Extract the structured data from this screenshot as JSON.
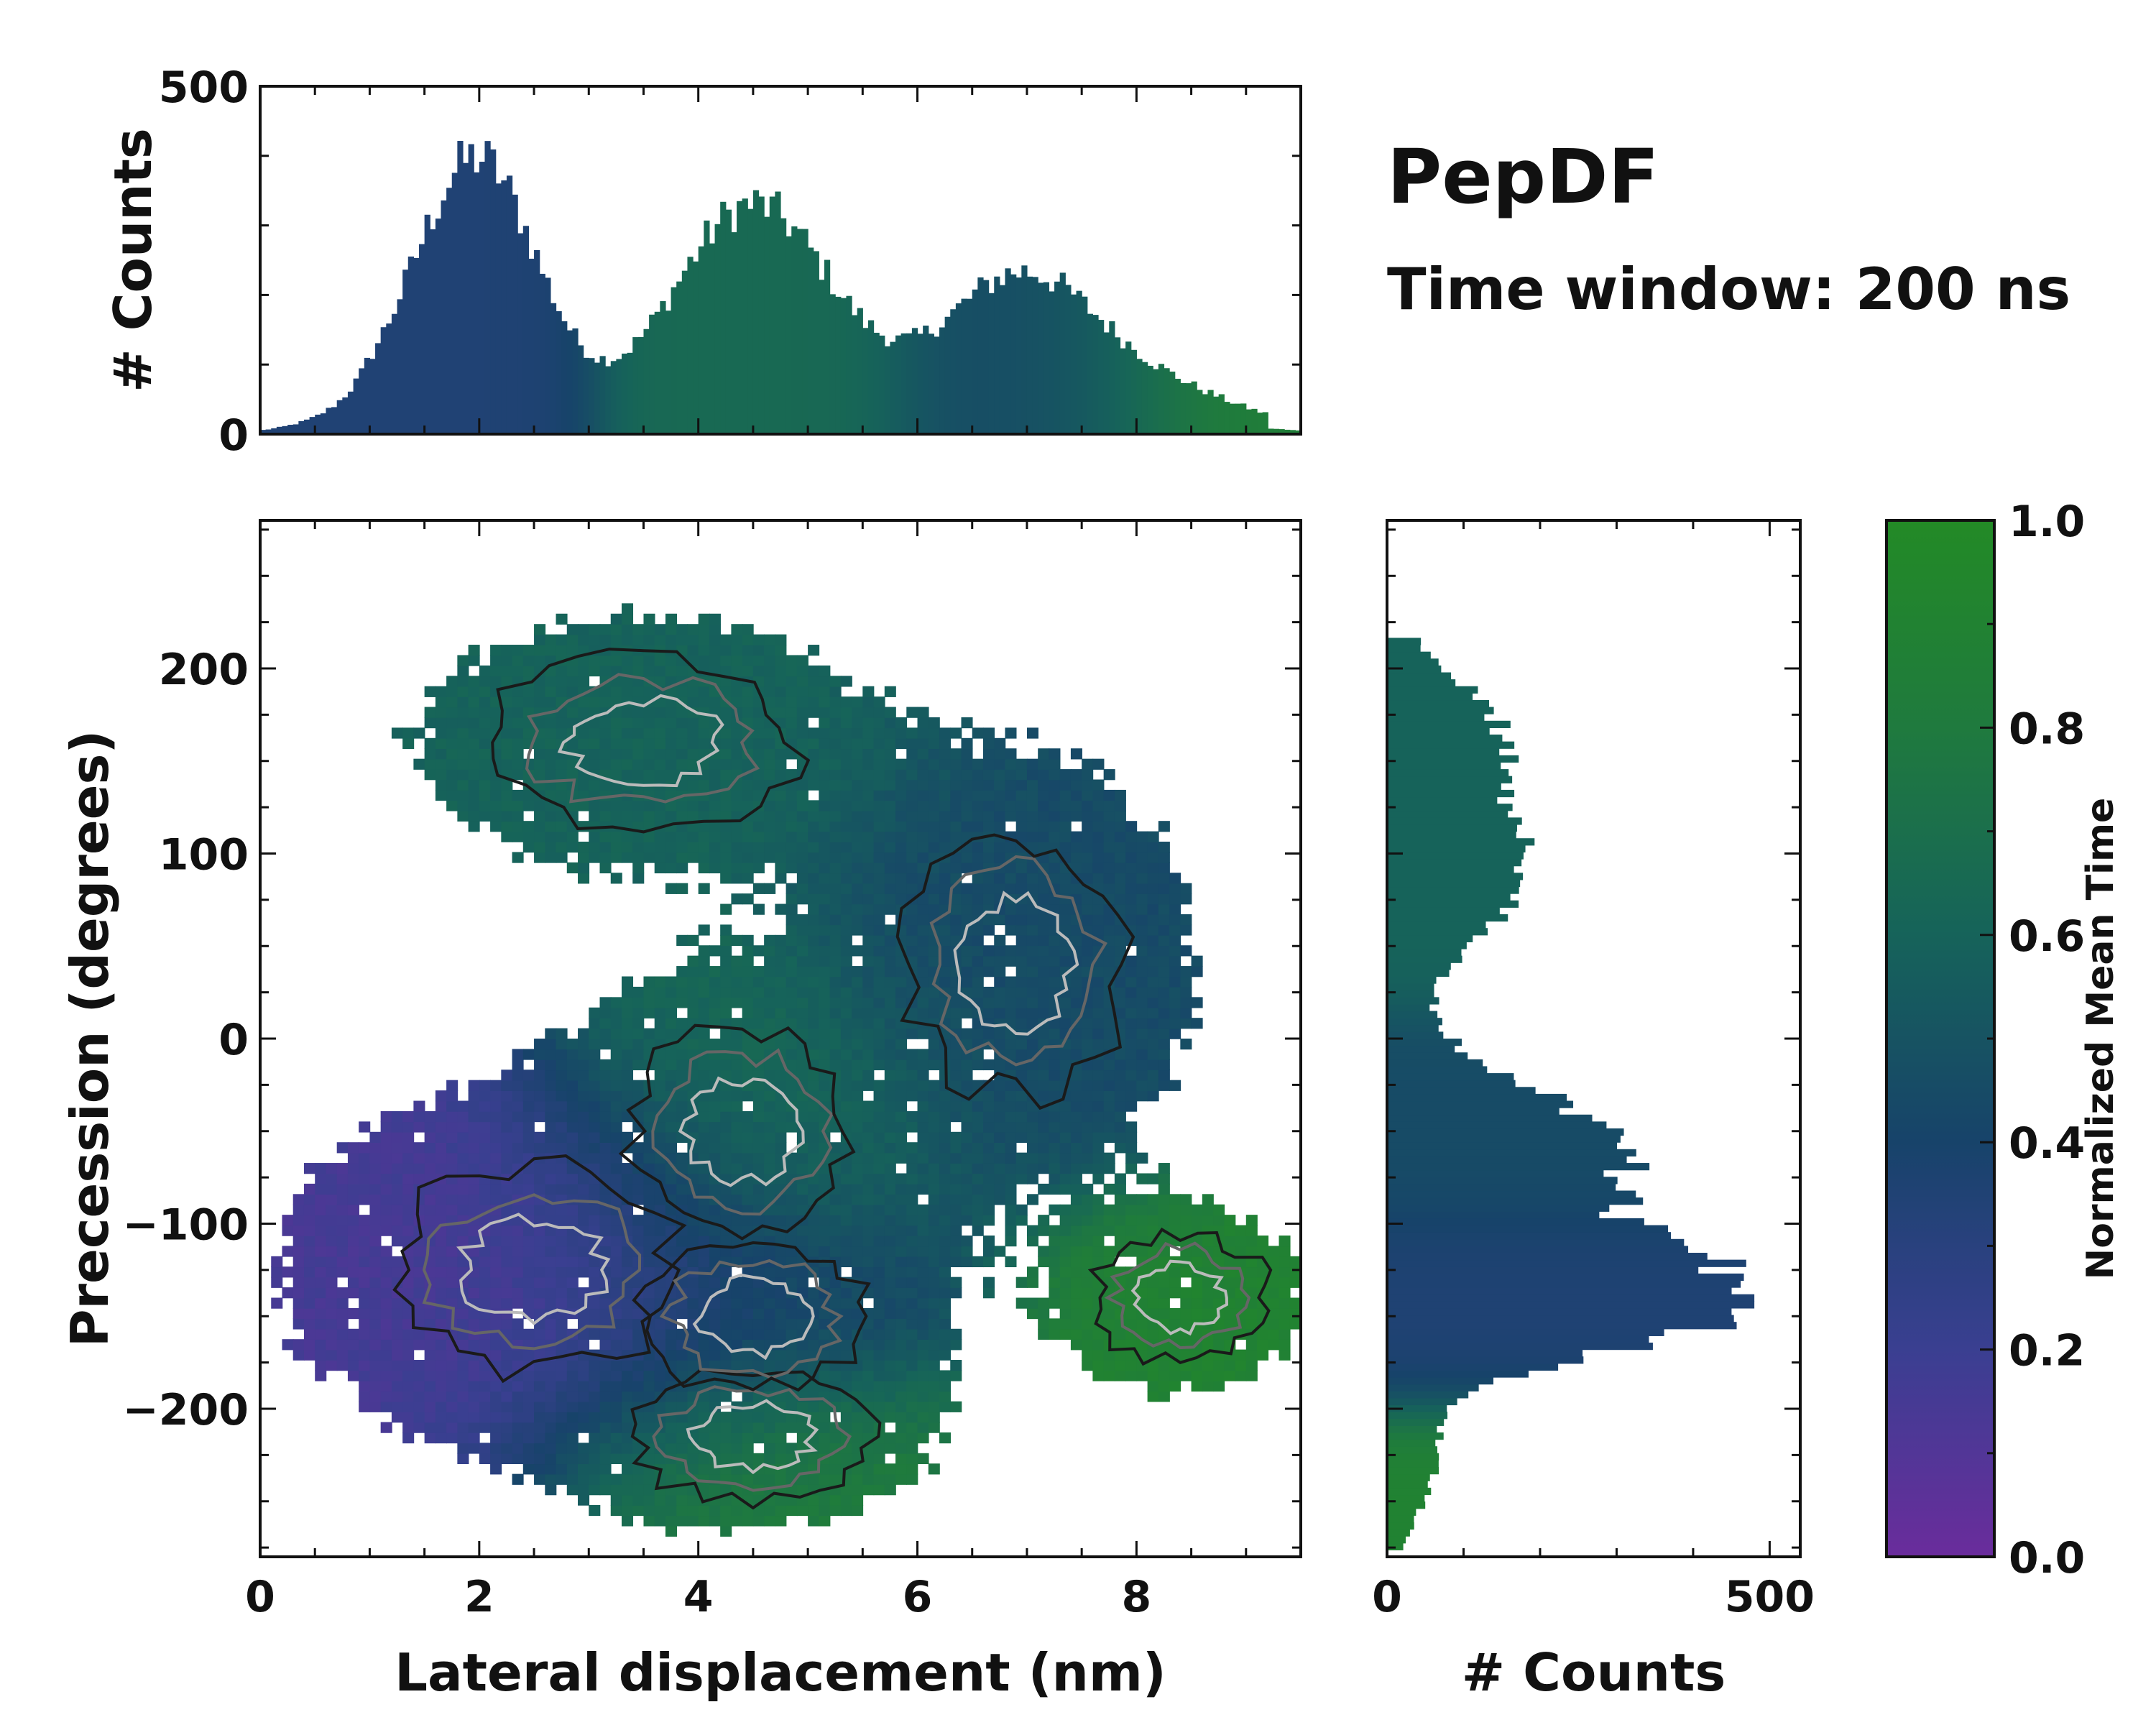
{
  "title": "PepDF",
  "subtitle": "Time window: 200 ns",
  "colormap": [
    "#6a2c9c",
    "#3a3f91",
    "#17436a",
    "#16635a",
    "#1f7a3e",
    "#238a26"
  ],
  "chart_data": [
    {
      "name": "top_marginal_histogram",
      "type": "bar",
      "xlim": [
        0,
        9.5
      ],
      "ylim": [
        0,
        500
      ],
      "yticks": [
        0,
        500
      ],
      "ylabel": "# Counts",
      "peaks": [
        {
          "x": 2.0,
          "value": 380,
          "width": 0.55,
          "color_value": 0.35
        },
        {
          "x": 4.5,
          "value": 330,
          "width": 0.75,
          "color_value": 0.65
        },
        {
          "x": 6.9,
          "value": 215,
          "width": 0.7,
          "color_value": 0.45
        },
        {
          "x": 8.2,
          "value": 60,
          "width": 0.8,
          "color_value": 0.85
        }
      ],
      "description": "Counts of lateral displacement colored by normalized mean time"
    },
    {
      "name": "main_2d_histogram",
      "type": "heatmap",
      "xlabel": "Lateral displacement (nm)",
      "ylabel": "Precession (degrees)",
      "xlim": [
        0,
        9.5
      ],
      "ylim": [
        -280,
        280
      ],
      "xticks": [
        0,
        2,
        4,
        6,
        8
      ],
      "yticks": [
        -200,
        -100,
        0,
        100,
        200
      ],
      "clusters": [
        {
          "x": 2.5,
          "y": -125,
          "sx": 1.3,
          "sy": 55,
          "weight": 1.0,
          "t": 0.15
        },
        {
          "x": 4.4,
          "y": -50,
          "sx": 1.0,
          "sy": 55,
          "weight": 0.8,
          "t": 0.65
        },
        {
          "x": 6.9,
          "y": 40,
          "sx": 1.0,
          "sy": 70,
          "weight": 0.75,
          "t": 0.45
        },
        {
          "x": 3.5,
          "y": 160,
          "sx": 1.4,
          "sy": 45,
          "weight": 0.6,
          "t": 0.6
        },
        {
          "x": 8.4,
          "y": -140,
          "sx": 0.8,
          "sy": 35,
          "weight": 0.55,
          "t": 0.9
        },
        {
          "x": 4.5,
          "y": -215,
          "sx": 1.1,
          "sy": 35,
          "weight": 0.5,
          "t": 0.85
        },
        {
          "x": 4.5,
          "y": -150,
          "sx": 1.0,
          "sy": 40,
          "weight": 0.6,
          "t": 0.4
        }
      ]
    },
    {
      "name": "right_marginal_histogram",
      "type": "bar",
      "orientation": "horizontal",
      "xlim": [
        0,
        540
      ],
      "xticks": [
        0,
        500
      ],
      "xlabel": "# Counts",
      "ylim": [
        -280,
        280
      ],
      "peaks": [
        {
          "y": -140,
          "value": 470,
          "width": 28,
          "color_value": 0.35
        },
        {
          "y": -60,
          "value": 300,
          "width": 35,
          "color_value": 0.45
        },
        {
          "y": 90,
          "value": 180,
          "width": 40,
          "color_value": 0.6
        },
        {
          "y": 170,
          "value": 120,
          "width": 30,
          "color_value": 0.6
        },
        {
          "y": -230,
          "value": 60,
          "width": 30,
          "color_value": 0.9
        }
      ]
    },
    {
      "name": "colorbar",
      "type": "colorbar",
      "label": "Normalized Mean Time",
      "ylim": [
        0.0,
        1.0
      ],
      "ticks": [
        "0.0",
        "0.2",
        "0.4",
        "0.6",
        "0.8",
        "1.0"
      ]
    }
  ]
}
